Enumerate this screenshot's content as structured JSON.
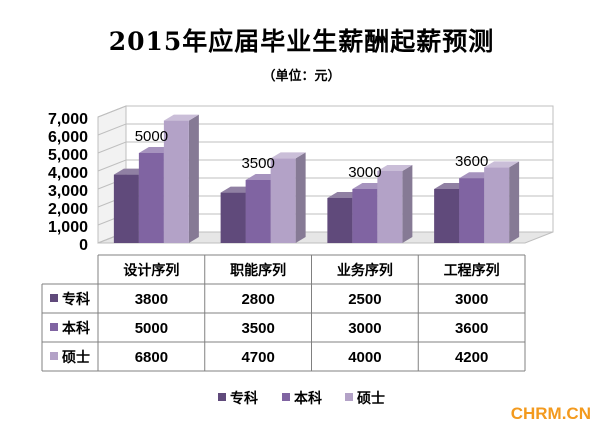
{
  "title": "2015年应届毕业生薪酬起薪预测",
  "subtitle": "（单位：元）",
  "watermark": "CHRM.CN",
  "chart_data": {
    "type": "bar",
    "categories": [
      "设计序列",
      "职能序列",
      "业务序列",
      "工程序列"
    ],
    "series": [
      {
        "name": "专科",
        "values": [
          3800,
          2800,
          2500,
          3000
        ],
        "color": "#604a7b"
      },
      {
        "name": "本科",
        "values": [
          5000,
          3500,
          3000,
          3600
        ],
        "color": "#8064a2"
      },
      {
        "name": "硕士",
        "values": [
          6800,
          4700,
          4000,
          4200
        ],
        "color": "#b3a2c7"
      }
    ],
    "y_ticks": [
      "0",
      "1,000",
      "2,000",
      "3,000",
      "4,000",
      "5,000",
      "6,000",
      "7,000"
    ],
    "ylim": [
      0,
      7000
    ],
    "data_labels": [
      {
        "category_index": 0,
        "text": "5000"
      },
      {
        "category_index": 1,
        "text": "3500"
      },
      {
        "category_index": 2,
        "text": "3000"
      },
      {
        "category_index": 3,
        "text": "3600"
      }
    ],
    "legend_position": "bottom",
    "data_table": true,
    "grid": true,
    "style": "3d-column"
  }
}
